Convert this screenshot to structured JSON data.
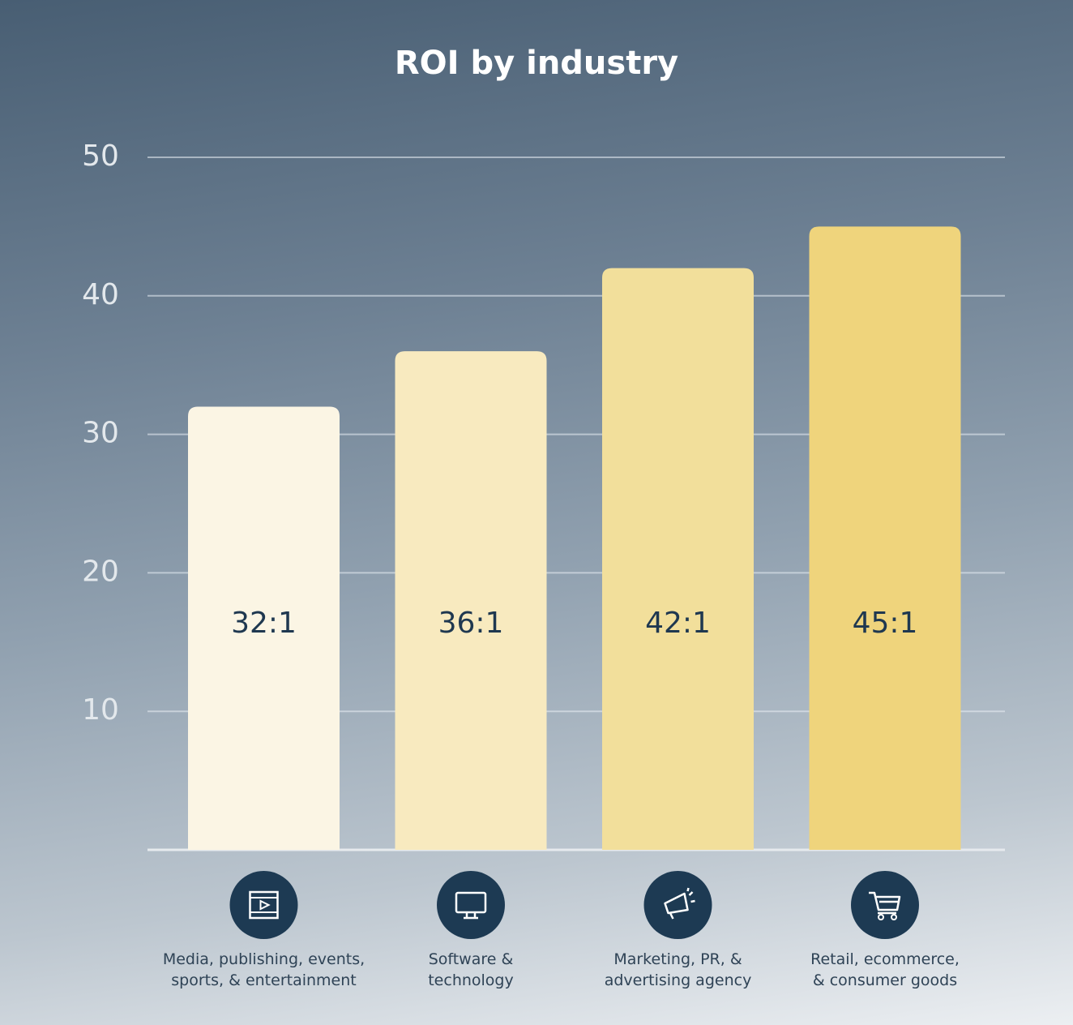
{
  "chart_data": {
    "type": "bar",
    "title": "ROI by industry",
    "categories": [
      "Media, publishing, events,\nsports, & entertainment",
      "Software &\ntechnology",
      "Marketing, PR, &\nadvertising agency",
      "Retail, ecommerce,\n& consumer goods"
    ],
    "values": [
      32,
      36,
      42,
      45
    ],
    "value_labels": [
      "32:1",
      "36:1",
      "42:1",
      "45:1"
    ],
    "colors": [
      "#fbf5e4",
      "#f8eabf",
      "#f2df9b",
      "#efd47c"
    ],
    "ylim": [
      0,
      50
    ],
    "yticks": [
      10,
      20,
      30,
      40,
      50
    ],
    "grid": true
  }
}
